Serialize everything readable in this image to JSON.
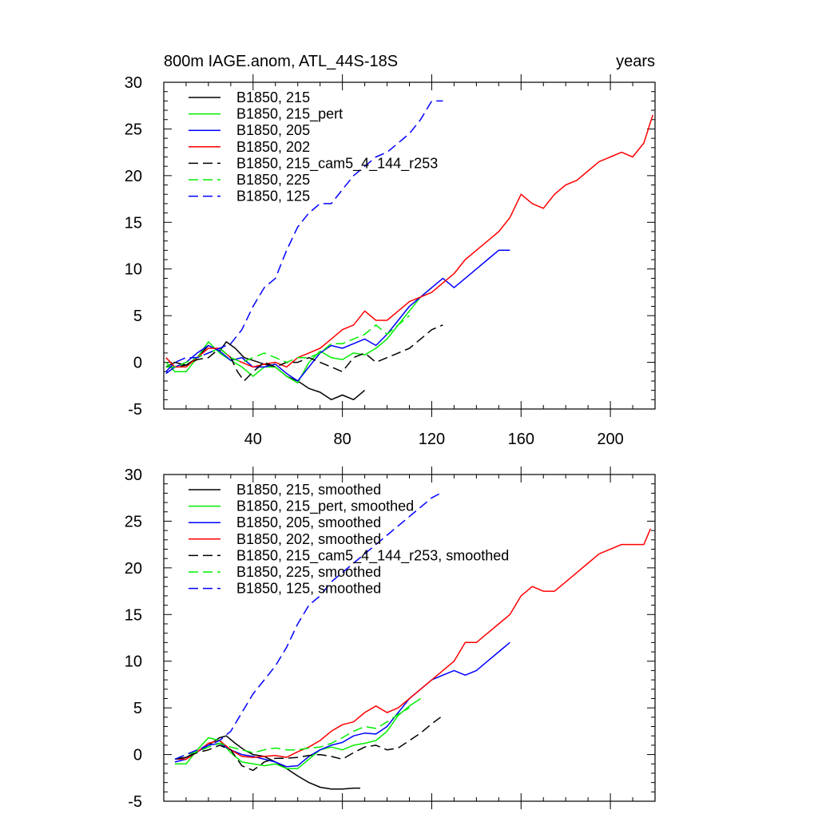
{
  "figure": {
    "title_left": "800m IAGE.anom, ATL_44S-18S",
    "title_right": "years"
  },
  "chart_data": [
    {
      "type": "line",
      "panel": "top",
      "title": "800m IAGE.anom, ATL_44S-18S",
      "units_label": "years",
      "xlim": [
        0,
        220
      ],
      "ylim": [
        -5,
        30
      ],
      "xticks": [
        40,
        80,
        120,
        160,
        200
      ],
      "yticks": [
        -5,
        0,
        5,
        10,
        15,
        20,
        25,
        30
      ],
      "grid": false,
      "legend_placement": "top-left",
      "series": [
        {
          "name": "B1850, 215",
          "color": "#000000",
          "dash": "solid",
          "x": [
            1,
            5,
            10,
            15,
            20,
            25,
            28,
            32,
            36,
            40,
            45,
            50,
            55,
            60,
            65,
            70,
            75,
            80,
            85,
            90
          ],
          "y": [
            -0.5,
            0,
            -0.3,
            0.5,
            1.8,
            1.2,
            2.2,
            1.5,
            0.5,
            0.2,
            -0.2,
            -0.5,
            -1.5,
            -2,
            -2.8,
            -3.2,
            -4,
            -3.5,
            -4,
            -3
          ]
        },
        {
          "name": "B1850, 215_pert",
          "color": "#00ee00",
          "dash": "solid",
          "x": [
            1,
            5,
            10,
            15,
            20,
            25,
            30,
            35,
            40,
            45,
            50,
            55,
            60,
            65,
            70,
            75,
            80,
            85,
            90,
            95,
            100,
            105,
            110,
            115,
            120
          ],
          "y": [
            0,
            -1,
            -1,
            0.5,
            2.2,
            1,
            0.2,
            -0.5,
            -1.5,
            -0.5,
            -0.5,
            -1.5,
            -2.2,
            0,
            1.2,
            0.5,
            0.3,
            1,
            0.8,
            1.5,
            2.5,
            4,
            5.5,
            7,
            8
          ]
        },
        {
          "name": "B1850, 205",
          "color": "#0000ff",
          "dash": "solid",
          "x": [
            1,
            5,
            10,
            15,
            20,
            25,
            30,
            35,
            40,
            45,
            50,
            55,
            60,
            65,
            70,
            75,
            80,
            85,
            90,
            95,
            100,
            105,
            110,
            115,
            120,
            125,
            130,
            135,
            140,
            145,
            150,
            155
          ],
          "y": [
            -1.2,
            -0.5,
            0,
            1,
            1.8,
            1.2,
            0.2,
            0.5,
            -0.5,
            -0.5,
            -0.2,
            -1.2,
            -2,
            -0.5,
            1,
            1.8,
            1.5,
            2,
            2.5,
            1.8,
            3,
            4.5,
            6,
            7,
            8,
            9,
            8,
            9,
            10,
            11,
            12,
            12
          ]
        },
        {
          "name": "B1850, 202",
          "color": "#ff0000",
          "dash": "solid",
          "x": [
            1,
            5,
            10,
            15,
            20,
            25,
            30,
            35,
            40,
            45,
            50,
            55,
            60,
            65,
            70,
            75,
            80,
            85,
            90,
            95,
            100,
            105,
            110,
            115,
            120,
            125,
            130,
            135,
            140,
            145,
            150,
            155,
            160,
            165,
            170,
            175,
            180,
            185,
            190,
            195,
            200,
            205,
            210,
            215,
            219
          ],
          "y": [
            0.5,
            -0.5,
            -0.5,
            0.5,
            1.5,
            1.5,
            0.5,
            0,
            -0.5,
            -0.2,
            0,
            -0.5,
            0.5,
            1,
            1.5,
            2.5,
            3.5,
            4,
            5.5,
            4.5,
            4.5,
            5.5,
            6.5,
            7,
            7.5,
            8.5,
            9.5,
            11,
            12,
            13,
            14,
            15.5,
            18,
            17,
            16.5,
            18,
            19,
            19.5,
            20.5,
            21.5,
            22,
            22.5,
            22,
            23.5,
            26.5
          ]
        },
        {
          "name": "B1850, 215_cam5_4_144_r253",
          "color": "#000000",
          "dash": "dashed",
          "x": [
            1,
            5,
            10,
            15,
            20,
            25,
            30,
            33,
            36,
            40,
            45,
            50,
            55,
            60,
            65,
            70,
            75,
            80,
            85,
            90,
            95,
            100,
            105,
            110,
            115,
            120,
            125
          ],
          "y": [
            -0.5,
            -0.5,
            -0.3,
            0.3,
            0.5,
            1.5,
            0.5,
            -1,
            -2,
            -1,
            0,
            -0.5,
            0,
            0,
            0.5,
            0,
            -0.5,
            -1,
            0.5,
            1,
            0,
            0.5,
            1,
            1.5,
            2.5,
            3.5,
            4
          ]
        },
        {
          "name": "B1850, 225",
          "color": "#00ee00",
          "dash": "dashed",
          "x": [
            1,
            5,
            10,
            15,
            20,
            25,
            30,
            35,
            40,
            45,
            50,
            55,
            60,
            65,
            70,
            75,
            80,
            85,
            90,
            95,
            100,
            105,
            110
          ],
          "y": [
            -0.5,
            -0.5,
            0,
            0.5,
            1,
            1.5,
            0.5,
            0,
            0.5,
            1,
            0.5,
            0,
            0.5,
            0.5,
            1,
            2,
            2,
            2.5,
            3,
            4,
            3,
            4,
            5
          ]
        },
        {
          "name": "B1850, 125",
          "color": "#0000ff",
          "dash": "dashed",
          "x": [
            1,
            5,
            10,
            15,
            20,
            25,
            30,
            35,
            40,
            45,
            50,
            55,
            60,
            65,
            70,
            75,
            80,
            85,
            90,
            95,
            100,
            105,
            110,
            115,
            120,
            125
          ],
          "y": [
            -1,
            0,
            0.5,
            0.5,
            1,
            1.5,
            2,
            3.5,
            6,
            8,
            9,
            12,
            14.5,
            16,
            17,
            17,
            18.5,
            20,
            21,
            22,
            22.5,
            23.5,
            24.5,
            26,
            28,
            28
          ]
        }
      ]
    },
    {
      "type": "line",
      "panel": "bottom",
      "xlim": [
        0,
        220
      ],
      "ylim": [
        -5,
        30
      ],
      "yticks": [
        -5,
        0,
        5,
        10,
        15,
        20,
        25,
        30
      ],
      "grid": false,
      "legend_placement": "top-left",
      "series": [
        {
          "name": "B1850, 215, smoothed",
          "color": "#000000",
          "dash": "solid",
          "x": [
            5,
            10,
            15,
            20,
            25,
            28,
            32,
            36,
            40,
            45,
            50,
            55,
            60,
            65,
            70,
            75,
            80,
            85,
            88
          ],
          "y": [
            -0.5,
            -0.3,
            0.3,
            1,
            1.8,
            2,
            1.2,
            0.5,
            0,
            -0.2,
            -0.8,
            -1.5,
            -2.3,
            -3,
            -3.5,
            -3.7,
            -3.7,
            -3.6,
            -3.6
          ]
        },
        {
          "name": "B1850, 215_pert, smoothed",
          "color": "#00ee00",
          "dash": "solid",
          "x": [
            5,
            10,
            15,
            20,
            25,
            30,
            35,
            40,
            45,
            50,
            55,
            60,
            65,
            70,
            75,
            80,
            85,
            90,
            95,
            100,
            105,
            110,
            115
          ],
          "y": [
            -1,
            -1,
            0.5,
            1.8,
            1.5,
            0.2,
            -0.8,
            -1,
            -1.2,
            -1,
            -1.5,
            -1.5,
            -0.5,
            0.5,
            0.8,
            0.5,
            1,
            1.2,
            1.5,
            2.5,
            4.2,
            5.2,
            6
          ]
        },
        {
          "name": "B1850, 205, smoothed",
          "color": "#0000ff",
          "dash": "solid",
          "x": [
            5,
            10,
            15,
            20,
            25,
            30,
            35,
            40,
            45,
            50,
            55,
            60,
            65,
            70,
            75,
            80,
            85,
            90,
            95,
            100,
            105,
            110,
            115,
            120,
            125,
            130,
            135,
            140,
            145,
            150,
            155
          ],
          "y": [
            -0.8,
            -0.5,
            0.3,
            1,
            1.2,
            0.5,
            0,
            -0.2,
            -0.5,
            -0.8,
            -1.3,
            -1.2,
            -0.2,
            0.5,
            1,
            1.3,
            2,
            2.3,
            2.2,
            3,
            4.5,
            6,
            7,
            8,
            8.5,
            9,
            8.5,
            9,
            10,
            11,
            12
          ]
        },
        {
          "name": "B1850, 202, smoothed",
          "color": "#ff0000",
          "dash": "solid",
          "x": [
            5,
            10,
            15,
            20,
            25,
            30,
            35,
            40,
            45,
            50,
            55,
            60,
            65,
            70,
            75,
            80,
            85,
            90,
            95,
            100,
            105,
            110,
            115,
            120,
            125,
            130,
            135,
            140,
            145,
            150,
            155,
            160,
            165,
            170,
            175,
            180,
            185,
            190,
            195,
            200,
            205,
            210,
            215,
            218
          ],
          "y": [
            -0.5,
            -0.5,
            0.3,
            1.2,
            1.5,
            0.5,
            -0.2,
            -0.3,
            -0.2,
            -0.1,
            -0.3,
            0.3,
            0.8,
            1.5,
            2.5,
            3.2,
            3.5,
            4.5,
            5.2,
            4.5,
            5,
            6,
            7,
            8,
            9,
            10,
            12,
            12,
            13,
            14,
            15,
            17,
            18,
            17.5,
            17.5,
            18.5,
            19.5,
            20.5,
            21.5,
            22,
            22.5,
            22.5,
            22.5,
            24.2
          ]
        },
        {
          "name": "B1850, 215_cam5_4_144_r253, smoothed",
          "color": "#000000",
          "dash": "dashed",
          "x": [
            5,
            10,
            15,
            20,
            25,
            30,
            35,
            40,
            45,
            50,
            55,
            60,
            65,
            70,
            75,
            80,
            85,
            90,
            95,
            100,
            105,
            110,
            115,
            120,
            124
          ],
          "y": [
            -0.5,
            -0.3,
            0.2,
            0.5,
            1,
            0.5,
            -1.2,
            -1.7,
            -0.8,
            -0.4,
            -0.4,
            -0.3,
            -0.1,
            0,
            -0.2,
            -0.5,
            0.2,
            0.8,
            1,
            0.5,
            0.7,
            1.5,
            2.3,
            3.3,
            4
          ]
        },
        {
          "name": "B1850, 225, smoothed",
          "color": "#00ee00",
          "dash": "dashed",
          "x": [
            5,
            10,
            15,
            20,
            25,
            30,
            35,
            40,
            45,
            50,
            55,
            60,
            65,
            70,
            75,
            80,
            85,
            90,
            95,
            100,
            105,
            110
          ],
          "y": [
            -0.5,
            0,
            0.3,
            0.8,
            1.2,
            0.8,
            0.5,
            0.2,
            0.5,
            0.7,
            0.5,
            0.5,
            0.7,
            0.8,
            1.2,
            1.8,
            2.5,
            3,
            2.8,
            3.5,
            4.3,
            5
          ]
        },
        {
          "name": "B1850, 125, smoothed",
          "color": "#0000ff",
          "dash": "dashed",
          "x": [
            5,
            10,
            15,
            20,
            25,
            30,
            35,
            40,
            45,
            50,
            55,
            60,
            65,
            70,
            75,
            80,
            85,
            90,
            95,
            100,
            105,
            110,
            115,
            120,
            124
          ],
          "y": [
            -0.5,
            0,
            0.5,
            1,
            1.5,
            2.5,
            4.5,
            6.5,
            8,
            9.5,
            11.5,
            14,
            16,
            17,
            18.5,
            19.5,
            20.5,
            21.5,
            22.5,
            23.5,
            24.5,
            25.5,
            26.5,
            27.5,
            28
          ]
        }
      ]
    }
  ]
}
